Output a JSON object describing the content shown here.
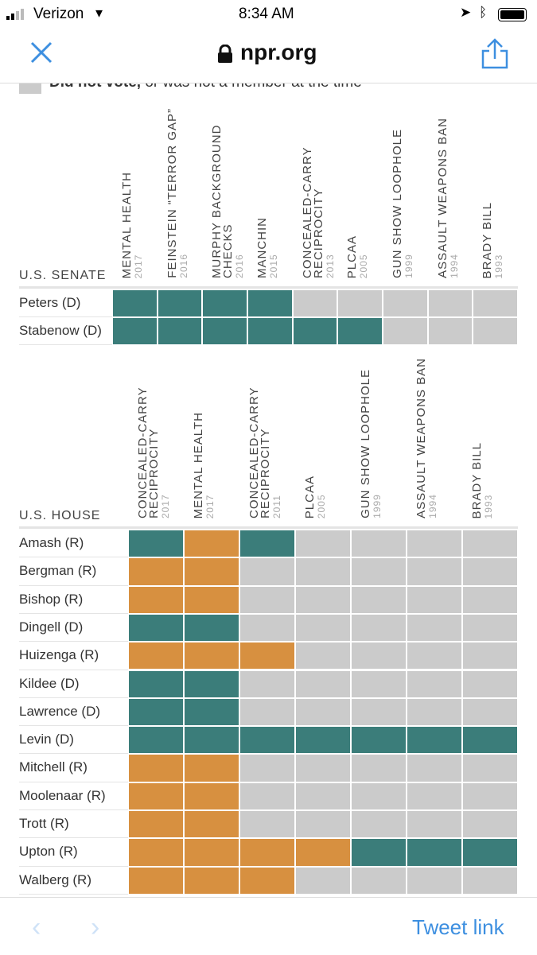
{
  "status": {
    "carrier": "Verizon",
    "time": "8:34 AM"
  },
  "browser": {
    "domain": "npr.org"
  },
  "legend": {
    "bold": "Did not vote,",
    "rest": " or was not a member at the time"
  },
  "colors": {
    "T": "#3b7d7a",
    "O": "#d79040",
    "G": "#cbcbcb"
  },
  "senate": {
    "title": "U.S. SENATE",
    "columns": [
      {
        "label": "MENTAL HEALTH",
        "year": "2017"
      },
      {
        "label": "FEINSTEIN “TERROR GAP”",
        "year": "2016"
      },
      {
        "label": "MURPHY BACKGROUND CHECKS",
        "year": "2016"
      },
      {
        "label": "MANCHIN",
        "year": "2015"
      },
      {
        "label": "CONCEALED-CARRY RECIPROCITY",
        "year": "2013"
      },
      {
        "label": "PLCAA",
        "year": "2005"
      },
      {
        "label": "GUN SHOW LOOPHOLE",
        "year": "1999"
      },
      {
        "label": "ASSAULT WEAPONS BAN",
        "year": "1994"
      },
      {
        "label": "BRADY BILL",
        "year": "1993"
      }
    ],
    "rows": [
      {
        "name": "Peters (D)",
        "votes": [
          "T",
          "T",
          "T",
          "T",
          "G",
          "G",
          "G",
          "G",
          "G"
        ]
      },
      {
        "name": "Stabenow (D)",
        "votes": [
          "T",
          "T",
          "T",
          "T",
          "T",
          "T",
          "G",
          "G",
          "G"
        ]
      }
    ]
  },
  "house": {
    "title": "U.S. HOUSE",
    "columns": [
      {
        "label": "CONCEALED-CARRY RECIPROCITY",
        "year": "2017"
      },
      {
        "label": "MENTAL HEALTH",
        "year": "2017"
      },
      {
        "label": "CONCEALED-CARRY RECIPROCITY",
        "year": "2011"
      },
      {
        "label": "PLCAA",
        "year": "2005"
      },
      {
        "label": "GUN SHOW LOOPHOLE",
        "year": "1999"
      },
      {
        "label": "ASSAULT WEAPONS BAN",
        "year": "1994"
      },
      {
        "label": "BRADY BILL",
        "year": "1993"
      }
    ],
    "rows": [
      {
        "name": "Amash (R)",
        "votes": [
          "T",
          "O",
          "T",
          "G",
          "G",
          "G",
          "G"
        ]
      },
      {
        "name": "Bergman (R)",
        "votes": [
          "O",
          "O",
          "G",
          "G",
          "G",
          "G",
          "G"
        ]
      },
      {
        "name": "Bishop (R)",
        "votes": [
          "O",
          "O",
          "G",
          "G",
          "G",
          "G",
          "G"
        ]
      },
      {
        "name": "Dingell (D)",
        "votes": [
          "T",
          "T",
          "G",
          "G",
          "G",
          "G",
          "G"
        ]
      },
      {
        "name": "Huizenga (R)",
        "votes": [
          "O",
          "O",
          "O",
          "G",
          "G",
          "G",
          "G"
        ]
      },
      {
        "name": "Kildee (D)",
        "votes": [
          "T",
          "T",
          "G",
          "G",
          "G",
          "G",
          "G"
        ]
      },
      {
        "name": "Lawrence (D)",
        "votes": [
          "T",
          "T",
          "G",
          "G",
          "G",
          "G",
          "G"
        ]
      },
      {
        "name": "Levin (D)",
        "votes": [
          "T",
          "T",
          "T",
          "T",
          "T",
          "T",
          "T"
        ]
      },
      {
        "name": "Mitchell (R)",
        "votes": [
          "O",
          "O",
          "G",
          "G",
          "G",
          "G",
          "G"
        ]
      },
      {
        "name": "Moolenaar (R)",
        "votes": [
          "O",
          "O",
          "G",
          "G",
          "G",
          "G",
          "G"
        ]
      },
      {
        "name": "Trott (R)",
        "votes": [
          "O",
          "O",
          "G",
          "G",
          "G",
          "G",
          "G"
        ]
      },
      {
        "name": "Upton (R)",
        "votes": [
          "O",
          "O",
          "O",
          "O",
          "T",
          "T",
          "T"
        ]
      },
      {
        "name": "Walberg (R)",
        "votes": [
          "O",
          "O",
          "O",
          "G",
          "G",
          "G",
          "G"
        ]
      }
    ]
  },
  "bottom": {
    "tweet_link": "Tweet link"
  }
}
